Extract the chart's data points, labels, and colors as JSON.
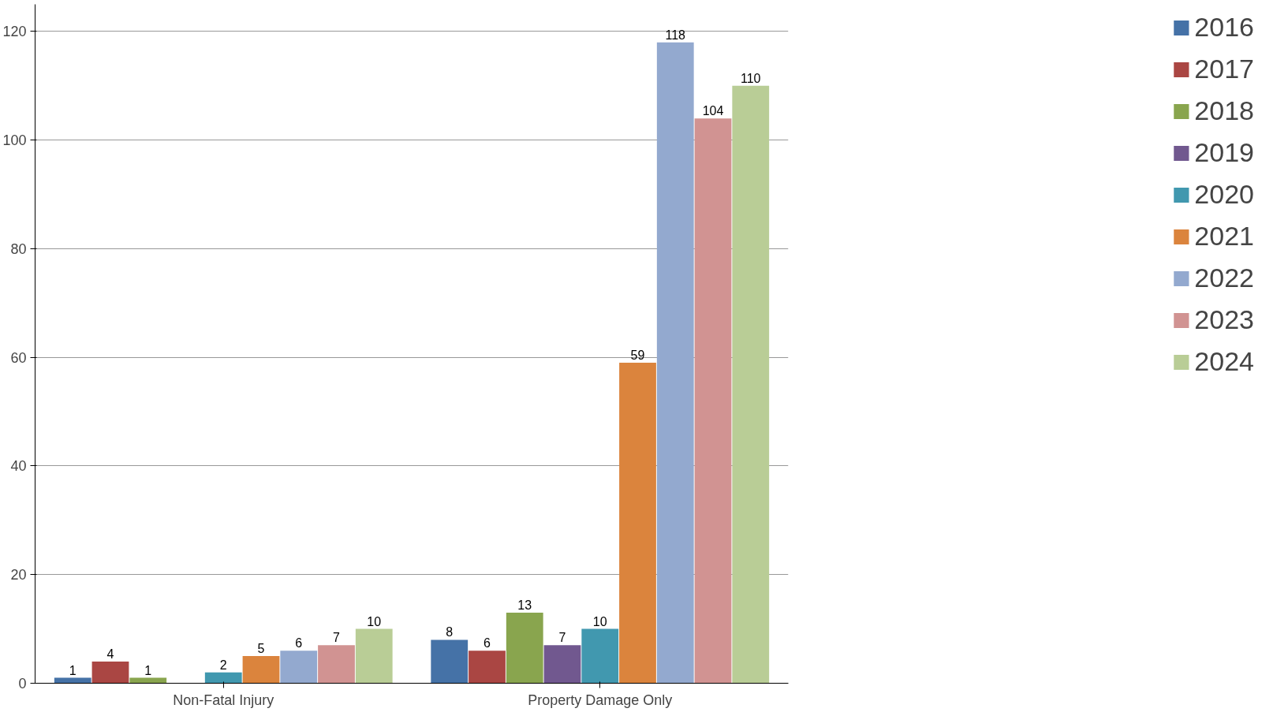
{
  "chart_data": {
    "type": "bar",
    "categories": [
      "Non-Fatal Injury",
      "Property Damage Only"
    ],
    "series": [
      {
        "name": "2016",
        "color": "#4572a7",
        "values": [
          1,
          8
        ]
      },
      {
        "name": "2017",
        "color": "#aa4643",
        "values": [
          4,
          6
        ]
      },
      {
        "name": "2018",
        "color": "#89a54e",
        "values": [
          1,
          13
        ]
      },
      {
        "name": "2019",
        "color": "#71588f",
        "values": [
          null,
          7
        ]
      },
      {
        "name": "2020",
        "color": "#4198af",
        "values": [
          2,
          10
        ]
      },
      {
        "name": "2021",
        "color": "#db843d",
        "values": [
          5,
          59
        ]
      },
      {
        "name": "2022",
        "color": "#93a9cf",
        "values": [
          6,
          118
        ]
      },
      {
        "name": "2023",
        "color": "#d19392",
        "values": [
          7,
          104
        ]
      },
      {
        "name": "2024",
        "color": "#b9cd96",
        "values": [
          10,
          110
        ]
      }
    ],
    "ylim": [
      0,
      125
    ],
    "yticks": [
      0,
      20,
      40,
      60,
      80,
      100,
      120
    ],
    "grid": "y",
    "legend": "right",
    "data_labels": true
  }
}
